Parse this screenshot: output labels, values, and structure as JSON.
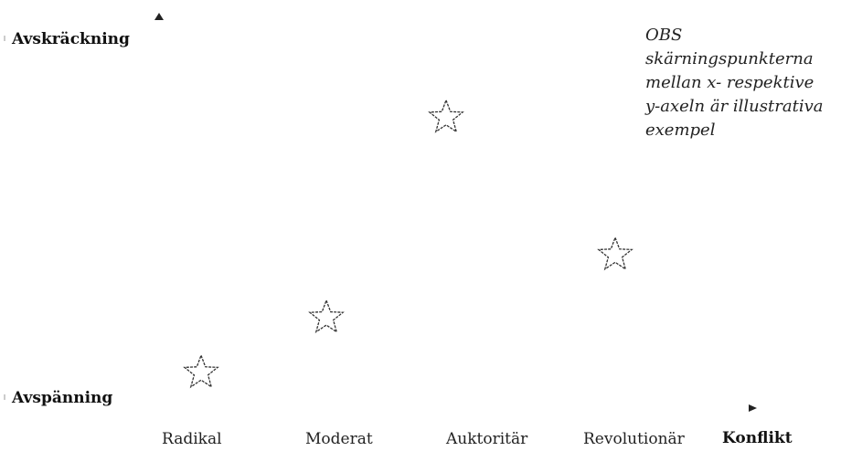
{
  "chart_data": {
    "type": "scatter",
    "y_top_label": "Avskräckning",
    "y_bottom_label": "Avspänning",
    "x_title": "Konflikt",
    "categories": [
      "Radikal",
      "Moderat",
      "Auktoritär",
      "Revolutionär"
    ],
    "values": [
      0.09,
      0.23,
      0.74,
      0.39
    ],
    "ylim": [
      0,
      1
    ],
    "marker": "star-icon",
    "grid": false,
    "note": [
      "OBS",
      "skärningspunkterna",
      "mellan x- respektive",
      "y-axeln är illustrativa",
      "exempel"
    ]
  }
}
